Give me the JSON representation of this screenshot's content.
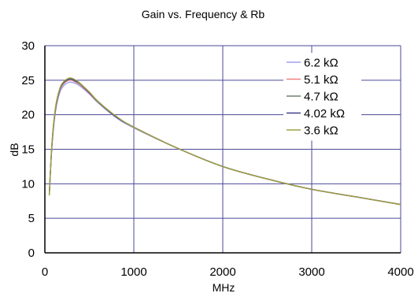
{
  "chart_data": {
    "type": "line",
    "title": "Gain vs. Frequency & Rb",
    "xlabel": "MHz",
    "ylabel": "dB",
    "xlim": [
      0,
      4000
    ],
    "ylim": [
      0,
      30
    ],
    "x_ticks": [
      0,
      1000,
      2000,
      3000,
      4000
    ],
    "y_ticks": [
      0,
      5,
      10,
      15,
      20,
      25,
      30
    ],
    "grid": true,
    "legend_position": "top-right",
    "series": [
      {
        "name": "6.2 kΩ",
        "color": "#a0a0f0",
        "x": [
          50,
          80,
          120,
          170,
          220,
          270,
          300,
          350,
          400,
          500,
          600,
          800,
          1000,
          1500,
          2000,
          2500,
          3000,
          3500,
          4000
        ],
        "y": [
          8.8,
          15.5,
          20.5,
          23.3,
          24.3,
          24.7,
          24.7,
          24.5,
          24.1,
          23.0,
          21.7,
          19.6,
          18.1,
          15.1,
          12.5,
          10.7,
          9.2,
          8.1,
          7.0
        ]
      },
      {
        "name": "5.1 kΩ",
        "color": "#f08080",
        "x": [
          50,
          80,
          120,
          170,
          220,
          270,
          300,
          350,
          400,
          500,
          600,
          800,
          1000,
          1500,
          2000,
          2500,
          3000,
          3500,
          4000
        ],
        "y": [
          8.6,
          15.6,
          20.8,
          23.6,
          24.6,
          25.0,
          25.0,
          24.7,
          24.3,
          23.1,
          21.8,
          19.7,
          18.2,
          15.1,
          12.5,
          10.7,
          9.2,
          8.1,
          7.0
        ]
      },
      {
        "name": "4.7 kΩ",
        "color": "#708070",
        "x": [
          50,
          80,
          120,
          170,
          220,
          270,
          300,
          350,
          400,
          500,
          600,
          800,
          1000,
          1500,
          2000,
          2500,
          3000,
          3500,
          4000
        ],
        "y": [
          8.5,
          15.7,
          20.9,
          23.7,
          24.7,
          25.1,
          25.1,
          24.8,
          24.4,
          23.2,
          21.8,
          19.7,
          18.2,
          15.1,
          12.5,
          10.7,
          9.2,
          8.1,
          7.0
        ]
      },
      {
        "name": "4.02 kΩ",
        "color": "#404090",
        "x": [
          50,
          80,
          120,
          170,
          220,
          270,
          300,
          350,
          400,
          500,
          600,
          800,
          1000,
          1500,
          2000,
          2500,
          3000,
          3500,
          4000
        ],
        "y": [
          8.4,
          15.8,
          21.0,
          23.8,
          24.8,
          25.2,
          25.2,
          24.9,
          24.5,
          23.2,
          21.9,
          19.7,
          18.2,
          15.1,
          12.5,
          10.7,
          9.2,
          8.1,
          7.0
        ]
      },
      {
        "name": "3.6 kΩ",
        "color": "#a0a040",
        "x": [
          50,
          80,
          120,
          170,
          220,
          270,
          300,
          350,
          400,
          500,
          600,
          800,
          1000,
          1500,
          2000,
          2500,
          3000,
          3500,
          4000
        ],
        "y": [
          8.3,
          15.9,
          21.1,
          23.9,
          24.9,
          25.3,
          25.3,
          25.0,
          24.5,
          23.3,
          21.9,
          19.8,
          18.2,
          15.1,
          12.5,
          10.7,
          9.2,
          8.1,
          7.0
        ]
      }
    ]
  },
  "colors": {
    "grid": "#4a4a9a",
    "axis": "#000000",
    "background": "#ffffff"
  }
}
